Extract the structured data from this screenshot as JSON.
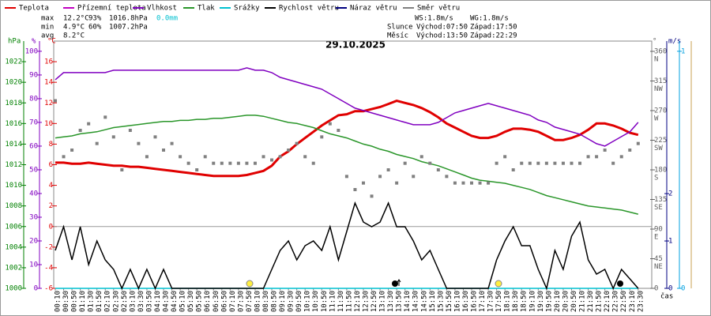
{
  "chart_data": {
    "type": "line",
    "title": "29.10.2025",
    "x_label": "čas",
    "stats": {
      "max": {
        "label": "max",
        "items": [
          "12.2°C",
          "93%",
          "1016.8hPa",
          "0.0mm"
        ]
      },
      "min": {
        "label": "min",
        "items": [
          "4.9°C",
          "60%",
          "1007.2hPa"
        ]
      },
      "avg": {
        "label": "avg",
        "items": [
          "8.2°C"
        ]
      }
    },
    "info": [
      "WS:1.8m/s",
      "WG:1.8m/s",
      "Slunce",
      "Východ:07:50",
      "Západ:17:50",
      "Měsíc",
      "Východ:13:50",
      "Západ:22:29"
    ],
    "x": [
      "00:10",
      "00:30",
      "00:50",
      "01:10",
      "01:30",
      "01:50",
      "02:10",
      "02:30",
      "02:50",
      "03:10",
      "03:30",
      "03:50",
      "04:10",
      "04:30",
      "04:50",
      "05:10",
      "05:30",
      "05:50",
      "06:10",
      "06:30",
      "06:50",
      "07:10",
      "07:30",
      "07:50",
      "08:10",
      "08:30",
      "08:50",
      "09:10",
      "09:30",
      "09:50",
      "10:10",
      "10:30",
      "10:50",
      "11:10",
      "11:30",
      "11:50",
      "12:10",
      "12:30",
      "12:50",
      "13:10",
      "13:30",
      "13:50",
      "14:10",
      "14:30",
      "14:50",
      "15:10",
      "15:30",
      "15:50",
      "16:10",
      "16:30",
      "16:50",
      "17:10",
      "17:30",
      "17:50",
      "18:10",
      "18:30",
      "18:50",
      "19:10",
      "19:30",
      "19:50",
      "20:10",
      "20:30",
      "20:50",
      "21:10",
      "21:30",
      "21:50",
      "22:10",
      "22:30",
      "22:50",
      "23:10",
      "23:30"
    ],
    "axes": {
      "pressure": {
        "label": "hPa",
        "color": "#008000",
        "lim": [
          1000,
          1024
        ],
        "ticks": [
          1000,
          1002,
          1004,
          1006,
          1008,
          1010,
          1012,
          1014,
          1016,
          1018,
          1020,
          1022
        ]
      },
      "humidity": {
        "label": "%",
        "color": "#8000c0",
        "lim": [
          0,
          104.3
        ],
        "ticks": [
          0,
          10,
          20,
          30,
          40,
          50,
          60,
          70,
          80,
          90,
          100
        ]
      },
      "temperature": {
        "label": "°C",
        "color": "#e00000",
        "lim": [
          -6,
          18
        ],
        "ticks": [
          -6,
          -4,
          -2,
          0,
          2,
          4,
          6,
          8,
          10,
          12,
          14,
          16
        ],
        "gridline": 0
      },
      "direction": {
        "label": "°",
        "color": "#606060",
        "lim": [
          0,
          375.6
        ],
        "ticks": [
          0,
          45,
          90,
          135,
          180,
          225,
          270,
          315,
          360
        ],
        "tick_names": [
          null,
          "NE",
          "E",
          "SE",
          "S",
          "SW",
          "W",
          "NW",
          "N"
        ]
      },
      "wind": {
        "label": "m/s",
        "color": "#000080",
        "lim": [
          0,
          5.22
        ],
        "ticks": [
          0,
          1,
          2
        ]
      },
      "rain": {
        "color": "#00a0e0",
        "lim": [
          0,
          1.043
        ],
        "ticks": [
          0,
          1
        ]
      }
    },
    "series": [
      {
        "name": "Teplota",
        "color": "#e00000",
        "axis": "temperature",
        "values": [
          6.2,
          6.2,
          6.1,
          6.1,
          6.2,
          6.1,
          6.0,
          5.9,
          5.9,
          5.8,
          5.8,
          5.7,
          5.6,
          5.5,
          5.4,
          5.3,
          5.2,
          5.1,
          5.0,
          4.9,
          4.9,
          4.9,
          4.9,
          5.0,
          5.2,
          5.4,
          5.9,
          6.8,
          7.3,
          8.0,
          8.6,
          9.2,
          9.8,
          10.3,
          10.8,
          10.9,
          11.2,
          11.2,
          11.4,
          11.6,
          11.9,
          12.2,
          12.0,
          11.8,
          11.5,
          11.1,
          10.6,
          10.0,
          9.6,
          9.2,
          8.8,
          8.6,
          8.6,
          8.8,
          9.2,
          9.5,
          9.5,
          9.4,
          9.2,
          8.8,
          8.4,
          8.4,
          8.6,
          8.9,
          9.4,
          10.0,
          10.0,
          9.8,
          9.5,
          9.1,
          8.9
        ]
      },
      {
        "name": "Přízemní teplota",
        "color": "#c000c0"
      },
      {
        "name": "Vlhkost",
        "color": "#8000c0",
        "axis": "humidity",
        "values": [
          88,
          91,
          91,
          91,
          91,
          91,
          91,
          92,
          92,
          92,
          92,
          92,
          92,
          92,
          92,
          92,
          92,
          92,
          92,
          92,
          92,
          92,
          92,
          93,
          92,
          92,
          91,
          89,
          88,
          87,
          86,
          85,
          84,
          82,
          80,
          78,
          76,
          75,
          74,
          73,
          72,
          71,
          70,
          69,
          69,
          69,
          70,
          72,
          74,
          75,
          76,
          77,
          78,
          77,
          76,
          75,
          74,
          73,
          71,
          70,
          68,
          67,
          66,
          65,
          63,
          61,
          60,
          62,
          64,
          66,
          70
        ]
      },
      {
        "name": "Tlak",
        "color": "#2a962a",
        "axis": "pressure",
        "values": [
          1014.6,
          1014.7,
          1014.8,
          1015.0,
          1015.1,
          1015.2,
          1015.4,
          1015.6,
          1015.7,
          1015.8,
          1015.9,
          1016.0,
          1016.1,
          1016.2,
          1016.2,
          1016.3,
          1016.3,
          1016.4,
          1016.4,
          1016.5,
          1016.5,
          1016.6,
          1016.7,
          1016.8,
          1016.8,
          1016.7,
          1016.5,
          1016.3,
          1016.1,
          1016.0,
          1015.8,
          1015.6,
          1015.3,
          1015.0,
          1014.8,
          1014.6,
          1014.3,
          1014.0,
          1013.8,
          1013.5,
          1013.3,
          1013.0,
          1012.8,
          1012.6,
          1012.3,
          1012.1,
          1011.9,
          1011.6,
          1011.3,
          1011.0,
          1010.7,
          1010.5,
          1010.4,
          1010.3,
          1010.2,
          1010.0,
          1009.8,
          1009.6,
          1009.3,
          1009.0,
          1008.8,
          1008.6,
          1008.4,
          1008.2,
          1008.0,
          1007.9,
          1007.8,
          1007.7,
          1007.6,
          1007.4,
          1007.2
        ]
      },
      {
        "name": "Srážky",
        "color": "#00c0d0",
        "axis": "rain",
        "values": [
          0,
          0,
          0,
          0,
          0,
          0,
          0,
          0,
          0,
          0,
          0,
          0,
          0,
          0,
          0,
          0,
          0,
          0,
          0,
          0,
          0,
          0,
          0,
          0,
          0,
          0,
          0,
          0,
          0,
          0,
          0,
          0,
          0,
          0,
          0,
          0,
          0,
          0,
          0,
          0,
          0,
          0,
          0,
          0,
          0,
          0,
          0,
          0,
          0,
          0,
          0,
          0,
          0,
          0,
          0,
          0,
          0,
          0,
          0,
          0,
          0,
          0,
          0,
          0,
          0,
          0,
          0,
          0,
          0,
          0,
          0
        ]
      },
      {
        "name": "Rychlost větru",
        "color": "#000000",
        "axis": "wind",
        "values": [
          0.8,
          1.3,
          0.6,
          1.3,
          0.5,
          1.0,
          0.6,
          0.4,
          0,
          0.4,
          0,
          0.4,
          0,
          0.4,
          0,
          0,
          0,
          0,
          0,
          0,
          0,
          0,
          0,
          0,
          0,
          0,
          0.4,
          0.8,
          1.0,
          0.6,
          0.9,
          1.0,
          0.8,
          1.3,
          0.6,
          1.2,
          1.8,
          1.4,
          1.3,
          1.4,
          1.8,
          1.3,
          1.3,
          1.0,
          0.6,
          0.8,
          0.4,
          0,
          0,
          0,
          0,
          0,
          0,
          0.6,
          1.0,
          1.3,
          0.9,
          0.9,
          0.4,
          0,
          0.8,
          0.4,
          1.1,
          1.4,
          0.6,
          0.3,
          0.4,
          0,
          0.4,
          0.2,
          0
        ]
      },
      {
        "name": "Náraz větru",
        "color": "#000080"
      },
      {
        "name": "Směr větru",
        "color": "#808080",
        "axis": "direction",
        "style": "points",
        "values": [
          285,
          200,
          210,
          240,
          250,
          220,
          260,
          230,
          180,
          240,
          220,
          200,
          230,
          210,
          220,
          200,
          190,
          180,
          200,
          190,
          190,
          190,
          190,
          190,
          190,
          200,
          195,
          200,
          210,
          220,
          200,
          190,
          230,
          250,
          240,
          170,
          150,
          160,
          140,
          170,
          180,
          160,
          190,
          170,
          200,
          190,
          180,
          170,
          160,
          160,
          160,
          160,
          160,
          190,
          200,
          180,
          190,
          190,
          190,
          190,
          190,
          190,
          190,
          190,
          200,
          200,
          210,
          190,
          200,
          210,
          220
        ]
      }
    ]
  }
}
